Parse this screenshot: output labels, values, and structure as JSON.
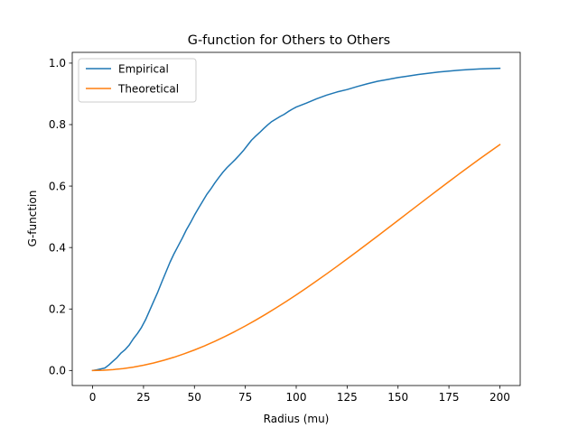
{
  "chart_data": {
    "type": "line",
    "title": "G-function for Others to Others",
    "xlabel": "Radius (mu)",
    "ylabel": "G-function",
    "xlim": [
      -10,
      210
    ],
    "ylim": [
      -0.049,
      1.035
    ],
    "xticks": [
      0,
      25,
      50,
      75,
      100,
      125,
      150,
      175,
      200
    ],
    "xtick_labels": [
      "0",
      "25",
      "50",
      "75",
      "100",
      "125",
      "150",
      "175",
      "200"
    ],
    "yticks": [
      0.0,
      0.2,
      0.4,
      0.6,
      0.8,
      1.0
    ],
    "ytick_labels": [
      "0.0",
      "0.2",
      "0.4",
      "0.6",
      "0.8",
      "1.0"
    ],
    "grid": false,
    "legend_position": "upper-left",
    "series": [
      {
        "name": "Empirical",
        "color": "#1f77b4",
        "x": [
          0,
          2,
          4,
          6,
          8,
          10,
          12,
          14,
          16,
          18,
          20,
          22,
          24,
          26,
          28,
          30,
          32,
          34,
          36,
          38,
          40,
          42,
          44,
          46,
          48,
          50,
          52,
          54,
          56,
          58,
          60,
          62,
          64,
          66,
          68,
          70,
          72,
          74,
          76,
          78,
          80,
          82,
          84,
          86,
          88,
          90,
          92,
          94,
          96,
          98,
          100,
          105,
          110,
          115,
          120,
          125,
          130,
          135,
          140,
          145,
          150,
          155,
          160,
          165,
          170,
          175,
          180,
          185,
          190,
          195,
          200
        ],
        "y": [
          0.0,
          0.002,
          0.005,
          0.008,
          0.018,
          0.03,
          0.042,
          0.057,
          0.068,
          0.083,
          0.103,
          0.12,
          0.14,
          0.165,
          0.195,
          0.225,
          0.255,
          0.288,
          0.32,
          0.352,
          0.38,
          0.405,
          0.43,
          0.457,
          0.48,
          0.505,
          0.528,
          0.55,
          0.572,
          0.59,
          0.61,
          0.628,
          0.645,
          0.66,
          0.673,
          0.686,
          0.7,
          0.715,
          0.732,
          0.749,
          0.762,
          0.774,
          0.787,
          0.799,
          0.81,
          0.818,
          0.826,
          0.833,
          0.842,
          0.85,
          0.857,
          0.87,
          0.884,
          0.896,
          0.906,
          0.914,
          0.924,
          0.933,
          0.941,
          0.947,
          0.953,
          0.958,
          0.963,
          0.967,
          0.971,
          0.974,
          0.977,
          0.979,
          0.981,
          0.982,
          0.983
        ]
      },
      {
        "name": "Theoretical",
        "color": "#ff7f0e",
        "x": [
          0,
          5,
          10,
          15,
          20,
          25,
          30,
          35,
          40,
          45,
          50,
          55,
          60,
          65,
          70,
          75,
          80,
          85,
          90,
          95,
          100,
          105,
          110,
          115,
          120,
          125,
          130,
          135,
          140,
          145,
          150,
          155,
          160,
          165,
          170,
          175,
          180,
          185,
          190,
          195,
          200
        ],
        "y": [
          0.0,
          0.0007,
          0.0028,
          0.0062,
          0.011,
          0.0171,
          0.0245,
          0.0332,
          0.0431,
          0.0543,
          0.0667,
          0.0802,
          0.0948,
          0.1105,
          0.1272,
          0.1449,
          0.1634,
          0.1829,
          0.2032,
          0.2242,
          0.2459,
          0.2683,
          0.2913,
          0.3147,
          0.3386,
          0.363,
          0.3876,
          0.4125,
          0.4376,
          0.4629,
          0.4883,
          0.5137,
          0.5391,
          0.5644,
          0.5896,
          0.6146,
          0.6393,
          0.6638,
          0.6879,
          0.7116,
          0.7349
        ]
      }
    ]
  }
}
